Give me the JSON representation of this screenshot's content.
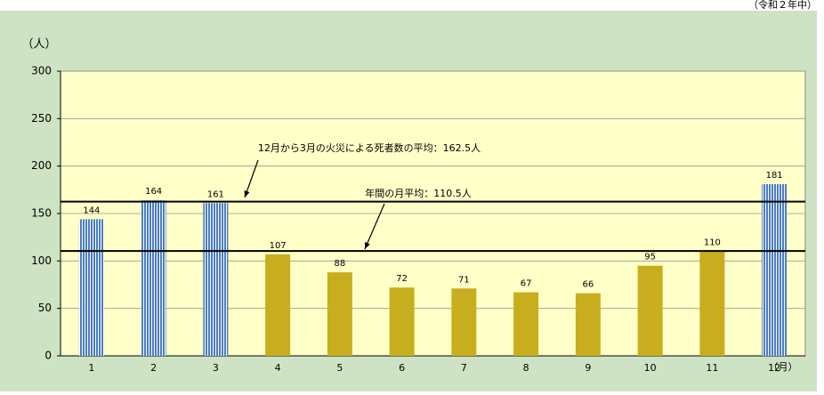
{
  "chart_data": {
    "type": "bar",
    "period_note": "（令和２年中）",
    "y_unit": "（人）",
    "x_unit": "（月）",
    "categories": [
      "1",
      "2",
      "3",
      "4",
      "5",
      "6",
      "7",
      "8",
      "9",
      "10",
      "11",
      "12"
    ],
    "values": [
      144,
      164,
      161,
      107,
      88,
      72,
      71,
      67,
      66,
      95,
      110,
      181
    ],
    "colors": [
      "#4a7cc4",
      "#4a7cc4",
      "#4a7cc4",
      "#c8ae1e",
      "#c8ae1e",
      "#c8ae1e",
      "#c8ae1e",
      "#c8ae1e",
      "#c8ae1e",
      "#c8ae1e",
      "#c8ae1e",
      "#4a7cc4"
    ],
    "striped": [
      true,
      true,
      true,
      false,
      false,
      false,
      false,
      false,
      false,
      false,
      false,
      true
    ],
    "ylim": [
      0,
      300
    ],
    "yticks": [
      0,
      50,
      100,
      150,
      200,
      250,
      300
    ],
    "grid": true,
    "reference_lines": [
      {
        "value": 162.5,
        "label": "12月から3月の火災による死者数の平均：162.5人"
      },
      {
        "value": 110.5,
        "label": "年間の月平均：110.5人"
      }
    ]
  }
}
